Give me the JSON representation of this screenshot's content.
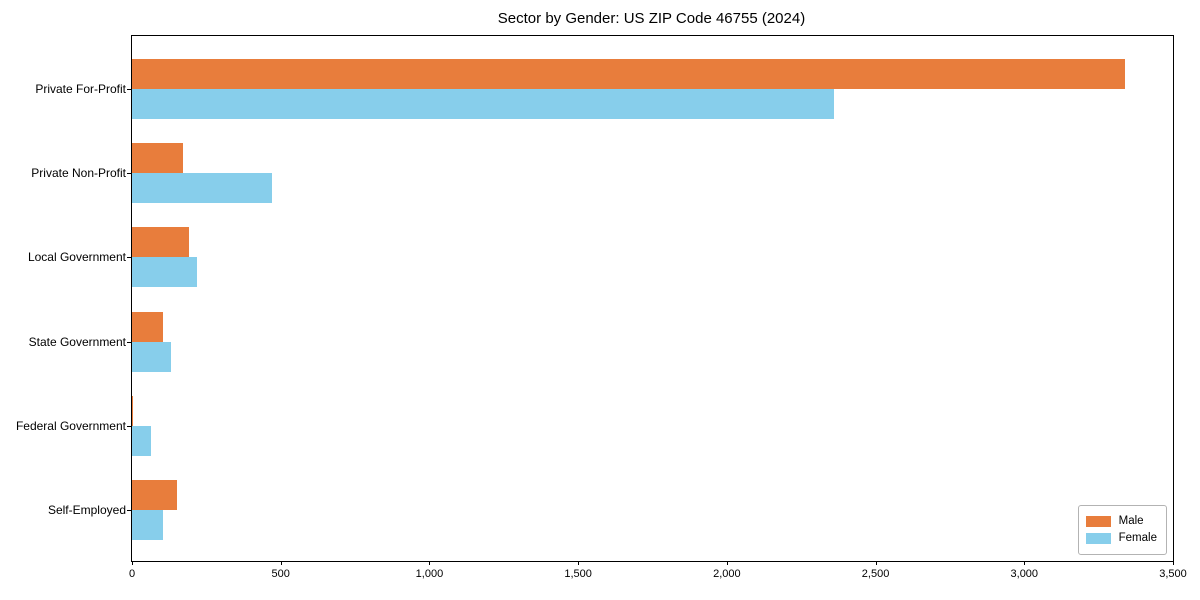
{
  "title": "Sector by Gender: US ZIP Code 46755 (2024)",
  "chart_data": {
    "type": "bar",
    "orientation": "horizontal",
    "title": "Sector by Gender: US ZIP Code 46755 (2024)",
    "xlabel": "",
    "ylabel": "",
    "categories": [
      "Private For-Profit",
      "Private Non-Profit",
      "Local Government",
      "State Government",
      "Federal Government",
      "Self-Employed"
    ],
    "series": [
      {
        "name": "Male",
        "color": "#E87D3C",
        "values": [
          3340,
          170,
          190,
          105,
          5,
          150
        ]
      },
      {
        "name": "Female",
        "color": "#87CEEB",
        "values": [
          2360,
          470,
          220,
          130,
          65,
          105
        ]
      }
    ],
    "xlim": [
      0,
      3500
    ],
    "x_ticks": [
      0,
      500,
      1000,
      1500,
      2000,
      2500,
      3000,
      3500
    ],
    "x_tick_labels": [
      "0",
      "500",
      "1,000",
      "1,500",
      "2,000",
      "2,500",
      "3,000",
      "3,500"
    ],
    "grid": false,
    "legend_position": "lower right",
    "axis_color": "#000000",
    "background_color": "#ffffff"
  }
}
